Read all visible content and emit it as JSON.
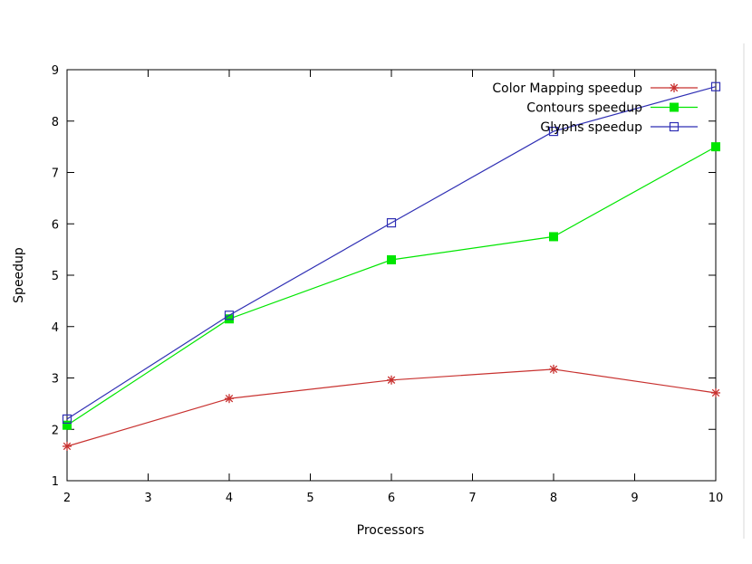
{
  "chart_data": {
    "type": "line",
    "title": "",
    "xlabel": "Processors",
    "ylabel": "Speedup",
    "xlim": [
      2,
      10
    ],
    "ylim": [
      1,
      9
    ],
    "xticks": [
      2,
      3,
      4,
      5,
      6,
      7,
      8,
      9,
      10
    ],
    "yticks": [
      1,
      2,
      3,
      4,
      5,
      6,
      7,
      8,
      9
    ],
    "grid": false,
    "legend_position": "top-right",
    "series": [
      {
        "name": "Color Mapping speedup",
        "color": "#c8312f",
        "marker": "star",
        "x": [
          2,
          4,
          6,
          8,
          10
        ],
        "y": [
          1.67,
          2.6,
          2.96,
          3.17,
          2.71
        ]
      },
      {
        "name": "Contours speedup",
        "color": "#00e600",
        "marker": "filled-square",
        "x": [
          2,
          4,
          6,
          8,
          10
        ],
        "y": [
          2.08,
          4.15,
          5.3,
          5.75,
          7.5
        ]
      },
      {
        "name": "Glyphs speedup",
        "color": "#2f2fb4",
        "marker": "open-square",
        "x": [
          2,
          4,
          6,
          8,
          10
        ],
        "y": [
          2.2,
          4.22,
          6.02,
          7.8,
          8.67
        ]
      }
    ]
  }
}
